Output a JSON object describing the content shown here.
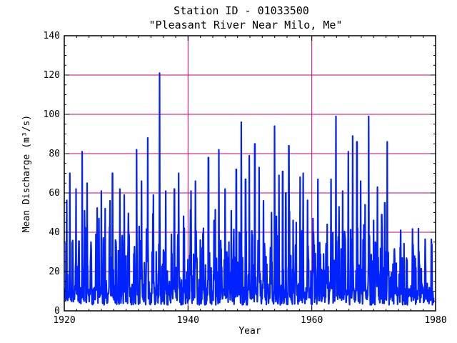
{
  "chart_data": {
    "type": "line",
    "title": "Station ID - 01033500",
    "subtitle": "\"Pleasant River Near Milo, Me\"",
    "xlabel": "Year",
    "ylabel": "Mean Discharge (m³/s)",
    "xlim": [
      1920,
      1980
    ],
    "ylim": [
      0,
      140
    ],
    "x_ticks": [
      1920,
      1940,
      1960,
      1980
    ],
    "y_ticks": [
      0,
      20,
      40,
      60,
      80,
      100,
      120,
      140
    ],
    "x_gridlines": [
      1940,
      1960
    ],
    "y_gridlines": [
      20,
      40,
      60,
      80,
      100,
      120
    ],
    "grid": true,
    "grid_color": "#cc0077",
    "line_color": "#0022ff",
    "series": [
      {
        "peaks": [
          [
            1920.9,
            70
          ],
          [
            1921.9,
            62
          ],
          [
            1922.9,
            81
          ],
          [
            1923.7,
            65
          ],
          [
            1925.1,
            39
          ],
          [
            1925.6,
            47
          ],
          [
            1926.0,
            61
          ],
          [
            1926.6,
            52
          ],
          [
            1927.4,
            56
          ],
          [
            1927.8,
            70
          ],
          [
            1929.0,
            62
          ],
          [
            1929.7,
            59
          ],
          [
            1930.5,
            38
          ],
          [
            1931.7,
            82
          ],
          [
            1932.1,
            43
          ],
          [
            1932.5,
            66
          ],
          [
            1933.5,
            88
          ],
          [
            1934.4,
            59
          ],
          [
            1935.4,
            121
          ],
          [
            1936.4,
            61
          ],
          [
            1937.8,
            62
          ],
          [
            1938.5,
            70
          ],
          [
            1939.4,
            42
          ],
          [
            1940.5,
            61
          ],
          [
            1941.2,
            66
          ],
          [
            1942.0,
            36
          ],
          [
            1942.5,
            42
          ],
          [
            1943.3,
            78
          ],
          [
            1944.2,
            46
          ],
          [
            1945.0,
            82
          ],
          [
            1946.0,
            62
          ],
          [
            1946.6,
            35
          ],
          [
            1947.0,
            51
          ],
          [
            1947.8,
            72
          ],
          [
            1948.6,
            96
          ],
          [
            1949.3,
            67
          ],
          [
            1949.9,
            79
          ],
          [
            1950.8,
            85
          ],
          [
            1951.5,
            73
          ],
          [
            1952.2,
            56
          ],
          [
            1953.5,
            50
          ],
          [
            1954.0,
            94
          ],
          [
            1954.7,
            69
          ],
          [
            1955.3,
            71
          ],
          [
            1955.8,
            60
          ],
          [
            1956.3,
            84
          ],
          [
            1957.0,
            46
          ],
          [
            1957.5,
            45
          ],
          [
            1958.1,
            68
          ],
          [
            1958.6,
            70
          ],
          [
            1959.4,
            33
          ],
          [
            1960.2,
            47
          ],
          [
            1961.0,
            67
          ],
          [
            1961.9,
            29
          ],
          [
            1962.5,
            44
          ],
          [
            1963.1,
            67
          ],
          [
            1963.9,
            99
          ],
          [
            1964.4,
            53
          ],
          [
            1965.0,
            61
          ],
          [
            1965.9,
            81
          ],
          [
            1966.6,
            89
          ],
          [
            1967.3,
            86
          ],
          [
            1967.9,
            66
          ],
          [
            1968.6,
            54
          ],
          [
            1969.2,
            99
          ],
          [
            1970.0,
            46
          ],
          [
            1970.6,
            63
          ],
          [
            1971.3,
            49
          ],
          [
            1971.8,
            55
          ],
          [
            1972.2,
            86
          ]
        ]
      }
    ]
  }
}
